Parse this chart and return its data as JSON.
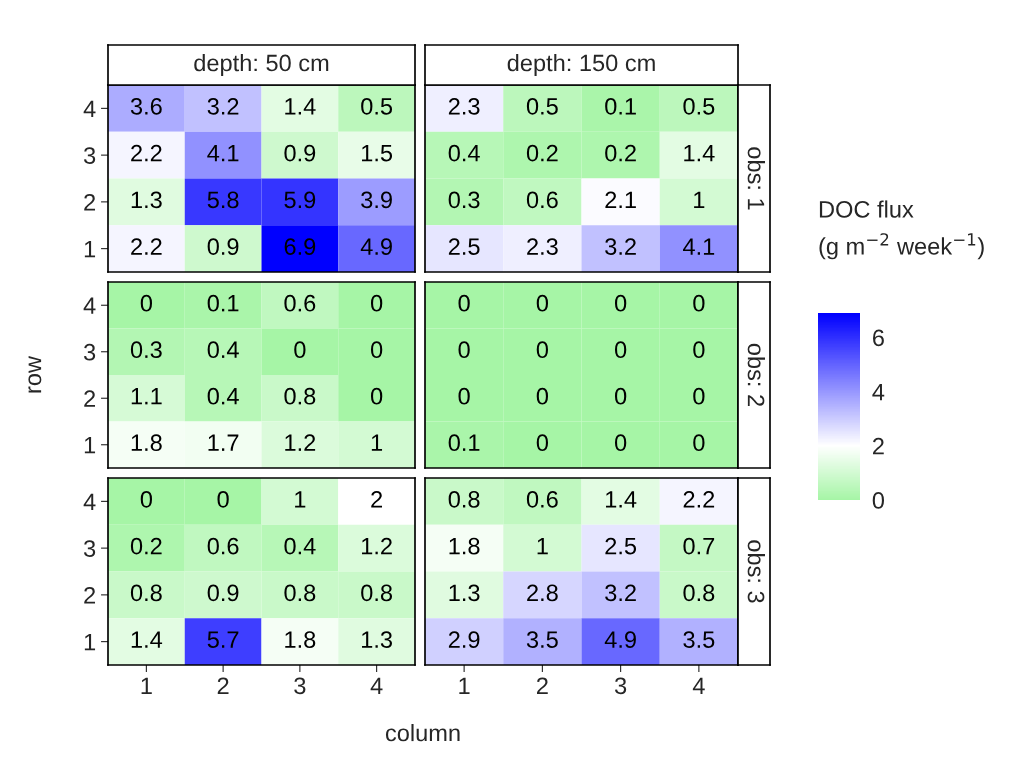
{
  "chart_data": [
    {
      "type": "heatmap",
      "title": "depth: 50 cm",
      "ylabel": "row",
      "clabel": "DOC flux\n(g m$^{−2}$ week$^{−1}$)",
      "categories": [
        "1",
        "2",
        "3",
        "4"
      ],
      "y_categories": [
        "4",
        "3",
        "2",
        "1"
      ],
      "cells": [
        [
          3.6,
          3.2,
          1.4,
          0.5
        ],
        [
          2.2,
          4.1,
          0.9,
          1.5
        ],
        [
          1.3,
          5.8,
          5.9,
          3.9
        ],
        [
          2.2,
          0.9,
          6.9,
          4.9
        ]
      ],
      "clim": [
        0,
        6.9
      ],
      "cticks": [
        0,
        2,
        4,
        6
      ],
      "data_labels": true,
      "tick_labels": "y"
    },
    {
      "type": "heatmap",
      "title": "depth: 150 cm",
      "y2label": "obs: 1",
      "categories": [
        "1",
        "2",
        "3",
        "4"
      ],
      "y_categories": [
        "4",
        "3",
        "2",
        "1"
      ],
      "cells": [
        [
          2.3,
          0.5,
          0.1,
          0.5
        ],
        [
          0.4,
          0.2,
          0.2,
          1.4
        ],
        [
          0.3,
          0.6,
          2.1,
          1
        ],
        [
          2.5,
          2.3,
          3.2,
          4.1
        ]
      ],
      "data_labels": true,
      "tick_labels": false
    },
    {
      "type": "heatmap",
      "categories": [
        "1",
        "2",
        "3",
        "4"
      ],
      "y_categories": [
        "4",
        "3",
        "2",
        "1"
      ],
      "cells": [
        [
          0,
          0.1,
          0.6,
          0
        ],
        [
          0.3,
          0.4,
          0,
          0
        ],
        [
          1.1,
          0.4,
          0.8,
          0
        ],
        [
          1.8,
          1.7,
          1.2,
          1
        ]
      ],
      "data_labels": true,
      "tick_labels": "y"
    },
    {
      "type": "heatmap",
      "y2label": "obs: 2",
      "categories": [
        "1",
        "2",
        "3",
        "4"
      ],
      "y_categories": [
        "4",
        "3",
        "2",
        "1"
      ],
      "cells": [
        [
          0,
          0,
          0,
          0
        ],
        [
          0,
          0,
          0,
          0
        ],
        [
          0,
          0,
          0,
          0
        ],
        [
          0.1,
          0,
          0,
          0
        ]
      ],
      "data_labels": true,
      "tick_labels": false
    },
    {
      "type": "heatmap",
      "xlabel": "column",
      "categories": [
        "1",
        "2",
        "3",
        "4"
      ],
      "y_categories": [
        "4",
        "3",
        "2",
        "1"
      ],
      "cells": [
        [
          0,
          0,
          1,
          2
        ],
        [
          0.2,
          0.6,
          0.4,
          1.2
        ],
        [
          0.8,
          0.9,
          0.8,
          0.8
        ],
        [
          1.4,
          5.7,
          1.8,
          1.3
        ]
      ],
      "data_labels": true
    },
    {
      "type": "heatmap",
      "y2label": "obs: 3",
      "categories": [
        "1",
        "2",
        "3",
        "4"
      ],
      "y_categories": [
        "4",
        "3",
        "2",
        "1"
      ],
      "cells": [
        [
          0.8,
          0.6,
          1.4,
          2.2
        ],
        [
          1.8,
          1,
          2.5,
          0.7
        ],
        [
          1.3,
          2.8,
          3.2,
          0.8
        ],
        [
          2.9,
          3.5,
          4.9,
          3.5
        ]
      ],
      "data_labels": true,
      "tick_labels": "x"
    }
  ]
}
